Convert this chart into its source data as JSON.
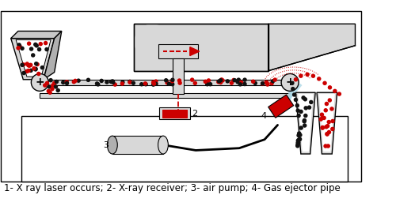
{
  "caption": "1- X ray laser occurs; 2- X-ray receiver; 3- air pump; 4- Gas ejector pipe",
  "caption_fontsize": 8.5,
  "bg_color": "#ffffff",
  "gray_color": "#c8c8c8",
  "light_gray": "#d8d8d8",
  "mid_gray": "#b0b0b0",
  "red_color": "#cc0000",
  "black_dot": "#111111",
  "red_dot": "#cc0000",
  "figsize": [
    5.0,
    2.61
  ],
  "dpi": 100
}
